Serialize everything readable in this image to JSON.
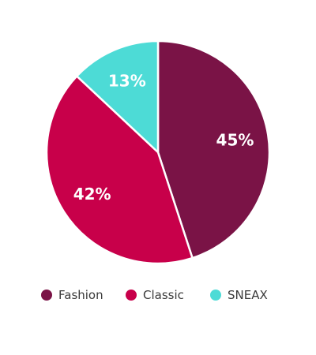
{
  "chart_data": {
    "type": "pie",
    "title": "",
    "categories": [
      "Fashion",
      "Classic",
      "SNEAX"
    ],
    "values": [
      45,
      42,
      13
    ],
    "value_labels": [
      "45%",
      "42%",
      "13%"
    ],
    "colors": [
      "#7a1346",
      "#c8004a",
      "#4ddbd6"
    ],
    "start_at": "top",
    "direction": "clockwise",
    "legend": "bottom"
  }
}
